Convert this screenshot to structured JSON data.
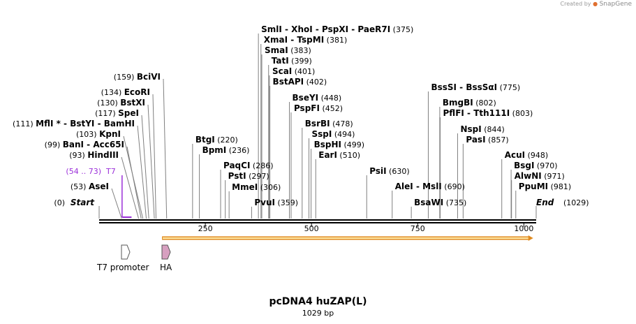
{
  "credit": {
    "prefix": "Created by",
    "brand": "SnapGene"
  },
  "map": {
    "name": "pcDNA4 huZAP(L)",
    "length_text": "1029 bp",
    "length": 1029,
    "start": {
      "label": "Start",
      "pos": 0,
      "pos_text": "(0)"
    },
    "end": {
      "label": "End",
      "pos": 1029,
      "pos_text": "(1029)"
    },
    "ticks": [
      250,
      500,
      750,
      1000
    ],
    "colors": {
      "axis": "#000000",
      "leader": "#7f7f7f",
      "primer": "#9b30d9",
      "orf_fill": "#ffe9a8",
      "orf_edge": "#e08a1e",
      "t7_fill": "#ffffff",
      "ha_fill": "#d7a0c0"
    }
  },
  "sites": [
    {
      "pos": 53,
      "pos_text": "(53)",
      "names": [
        "AseI"
      ]
    },
    {
      "pos": 93,
      "pos_text": "(93)",
      "names": [
        "HindIII"
      ]
    },
    {
      "pos": 99,
      "pos_text": "(99)",
      "names": [
        "BanI",
        "Acc65I"
      ]
    },
    {
      "pos": 103,
      "pos_text": "(103)",
      "names": [
        "KpnI"
      ]
    },
    {
      "pos": 111,
      "pos_text": "(111)",
      "names": [
        "MflI *",
        "BstYI",
        "BamHI"
      ]
    },
    {
      "pos": 117,
      "pos_text": "(117)",
      "names": [
        "SpeI"
      ]
    },
    {
      "pos": 130,
      "pos_text": "(130)",
      "names": [
        "BstXI"
      ]
    },
    {
      "pos": 134,
      "pos_text": "(134)",
      "names": [
        "EcoRI"
      ]
    },
    {
      "pos": 159,
      "pos_text": "(159)",
      "names": [
        "BciVI"
      ]
    },
    {
      "pos": 220,
      "pos_text": "(220)",
      "names": [
        "BtgI"
      ]
    },
    {
      "pos": 236,
      "pos_text": "(236)",
      "names": [
        "BpmI"
      ]
    },
    {
      "pos": 286,
      "pos_text": "(286)",
      "names": [
        "PaqCI"
      ]
    },
    {
      "pos": 297,
      "pos_text": "(297)",
      "names": [
        "PstI"
      ]
    },
    {
      "pos": 306,
      "pos_text": "(306)",
      "names": [
        "MmeI"
      ]
    },
    {
      "pos": 359,
      "pos_text": "(359)",
      "names": [
        "PvuI"
      ]
    },
    {
      "pos": 375,
      "pos_text": "(375)",
      "names": [
        "SmlI",
        "XhoI",
        "PspXI",
        "PaeR7I"
      ]
    },
    {
      "pos": 381,
      "pos_text": "(381)",
      "names": [
        "XmaI",
        "TspMI"
      ]
    },
    {
      "pos": 383,
      "pos_text": "(383)",
      "names": [
        "SmaI"
      ]
    },
    {
      "pos": 399,
      "pos_text": "(399)",
      "names": [
        "TatI"
      ]
    },
    {
      "pos": 401,
      "pos_text": "(401)",
      "names": [
        "ScaI"
      ]
    },
    {
      "pos": 402,
      "pos_text": "(402)",
      "names": [
        "BstAPI"
      ]
    },
    {
      "pos": 448,
      "pos_text": "(448)",
      "names": [
        "BseYI"
      ]
    },
    {
      "pos": 452,
      "pos_text": "(452)",
      "names": [
        "PspFI"
      ]
    },
    {
      "pos": 478,
      "pos_text": "(478)",
      "names": [
        "BsrBI"
      ]
    },
    {
      "pos": 494,
      "pos_text": "(494)",
      "names": [
        "SspI"
      ]
    },
    {
      "pos": 499,
      "pos_text": "(499)",
      "names": [
        "BspHI"
      ]
    },
    {
      "pos": 510,
      "pos_text": "(510)",
      "names": [
        "EarI"
      ]
    },
    {
      "pos": 630,
      "pos_text": "(630)",
      "names": [
        "PsiI"
      ]
    },
    {
      "pos": 690,
      "pos_text": "(690)",
      "names": [
        "AleI",
        "MslI"
      ]
    },
    {
      "pos": 735,
      "pos_text": "(735)",
      "names": [
        "BsaWI"
      ]
    },
    {
      "pos": 775,
      "pos_text": "(775)",
      "names": [
        "BssSI",
        "BssSαI"
      ]
    },
    {
      "pos": 802,
      "pos_text": "(802)",
      "names": [
        "BmgBI"
      ]
    },
    {
      "pos": 803,
      "pos_text": "(803)",
      "names": [
        "PflFI",
        "Tth111I"
      ]
    },
    {
      "pos": 844,
      "pos_text": "(844)",
      "names": [
        "NspI"
      ]
    },
    {
      "pos": 857,
      "pos_text": "(857)",
      "names": [
        "PasI"
      ]
    },
    {
      "pos": 948,
      "pos_text": "(948)",
      "names": [
        "AcuI"
      ]
    },
    {
      "pos": 970,
      "pos_text": "(970)",
      "names": [
        "BsgI"
      ]
    },
    {
      "pos": 971,
      "pos_text": "(971)",
      "names": [
        "AlwNI"
      ]
    },
    {
      "pos": 981,
      "pos_text": "(981)",
      "names": [
        "PpuMI"
      ]
    }
  ],
  "primer": {
    "name": "T7",
    "range": [
      54,
      73
    ],
    "range_text": "(54 .. 73)"
  },
  "features": [
    {
      "name": "T7 promoter",
      "range": [
        54,
        73
      ],
      "type": "promoter"
    },
    {
      "name": "HA",
      "range": [
        148,
        174
      ],
      "type": "tag"
    },
    {
      "name": "",
      "range": [
        148,
        1022
      ],
      "type": "orf"
    }
  ]
}
